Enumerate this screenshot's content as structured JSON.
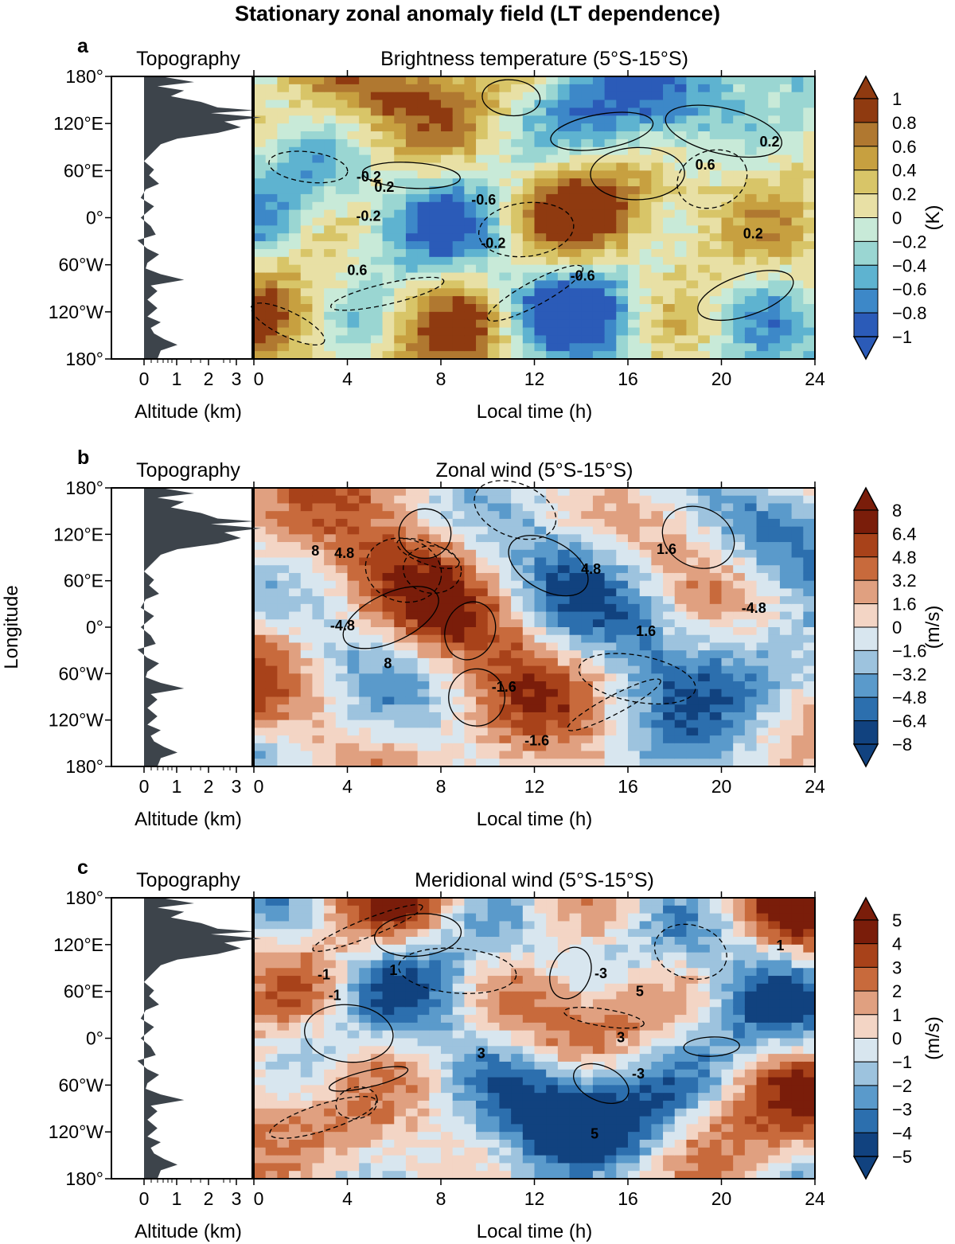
{
  "figure_title": "Stationary zonal anomaly field (LT dependence)",
  "chart_data": [
    {
      "type": "heatmap",
      "panel_label": "a",
      "topography_title": "Topography",
      "title": "Brightness temperature (5°S-15°S)",
      "xlabel": "Local time (h)",
      "topo_xlabel": "Altitude (km)",
      "ylabel": "",
      "x_ticks": [
        "0",
        "4",
        "8",
        "12",
        "16",
        "20",
        "24"
      ],
      "y_ticks": [
        "180°",
        "120°E",
        "60°E",
        "0°",
        "60°W",
        "120°W",
        "180°"
      ],
      "topo_ticks": [
        "0",
        "1",
        "2",
        "3"
      ],
      "xlim": [
        0,
        24
      ],
      "ylim": [
        -180,
        180
      ],
      "colorbar_label": "(K)",
      "colorbar_ticks": [
        "1",
        "0.8",
        "0.6",
        "0.4",
        "0.2",
        "0",
        "−0.2",
        "−0.4",
        "−0.6",
        "−0.8",
        "−1"
      ],
      "colorbar_colors": [
        "#8f3a10",
        "#b07830",
        "#c7a040",
        "#d8c568",
        "#e8e0a5",
        "#c8ead8",
        "#9ad6d2",
        "#5eb3d0",
        "#3d88c8",
        "#2b5bb8"
      ],
      "contour_labels": [
        "0.2",
        "-0.2",
        "0.6",
        "-0.6"
      ]
    },
    {
      "type": "heatmap",
      "panel_label": "b",
      "topography_title": "Topography",
      "title": "Zonal wind (5°S-15°S)",
      "xlabel": "Local time (h)",
      "topo_xlabel": "Altitude (km)",
      "ylabel": "Longitude",
      "x_ticks": [
        "0",
        "4",
        "8",
        "12",
        "16",
        "20",
        "24"
      ],
      "y_ticks": [
        "180°",
        "120°E",
        "60°E",
        "0°",
        "60°W",
        "120°W",
        "180°"
      ],
      "topo_ticks": [
        "0",
        "1",
        "2",
        "3"
      ],
      "xlim": [
        0,
        24
      ],
      "ylim": [
        -180,
        180
      ],
      "colorbar_label": "(m/s)",
      "colorbar_ticks": [
        "8",
        "6.4",
        "4.8",
        "3.2",
        "1.6",
        "0",
        "−1.6",
        "−3.2",
        "−4.8",
        "−6.4",
        "−8"
      ],
      "colorbar_colors": [
        "#7a1d0a",
        "#a8421a",
        "#c86a3c",
        "#e0a080",
        "#f3d5c5",
        "#d8e6ef",
        "#9dc3de",
        "#5a9acb",
        "#2c6fae",
        "#11427f"
      ],
      "contour_labels": [
        "1.6",
        "-1.6",
        "4.8",
        "-4.8",
        "8"
      ]
    },
    {
      "type": "heatmap",
      "panel_label": "c",
      "topography_title": "Topography",
      "title": "Meridional wind (5°S-15°S)",
      "xlabel": "Local time (h)",
      "topo_xlabel": "Altitude (km)",
      "ylabel": "",
      "x_ticks": [
        "0",
        "4",
        "8",
        "12",
        "16",
        "20",
        "24"
      ],
      "y_ticks": [
        "180°",
        "120°E",
        "60°E",
        "0°",
        "60°W",
        "120°W",
        "180°"
      ],
      "topo_ticks": [
        "0",
        "1",
        "2",
        "3"
      ],
      "xlim": [
        0,
        24
      ],
      "ylim": [
        -180,
        180
      ],
      "colorbar_label": "(m/s)",
      "colorbar_ticks": [
        "5",
        "4",
        "3",
        "2",
        "1",
        "0",
        "−1",
        "−2",
        "−3",
        "−4",
        "−5"
      ],
      "colorbar_colors": [
        "#7a1d0a",
        "#a8421a",
        "#c86a3c",
        "#e0a080",
        "#f3d5c5",
        "#d8e6ef",
        "#9dc3de",
        "#5a9acb",
        "#2c6fae",
        "#11427f"
      ],
      "contour_labels": [
        "1",
        "-1",
        "3",
        "-3",
        "5"
      ]
    }
  ]
}
